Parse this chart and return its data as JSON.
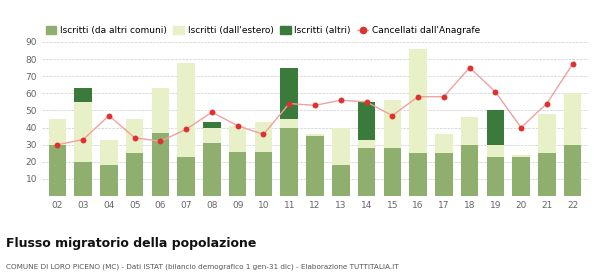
{
  "years": [
    "02",
    "03",
    "04",
    "05",
    "06",
    "07",
    "08",
    "09",
    "10",
    "11",
    "12",
    "13",
    "14",
    "15",
    "16",
    "17",
    "18",
    "19",
    "20",
    "21",
    "22"
  ],
  "iscritti_altri_comuni": [
    30,
    20,
    18,
    25,
    37,
    23,
    31,
    26,
    26,
    40,
    35,
    18,
    28,
    28,
    25,
    25,
    30,
    23,
    23,
    25,
    30
  ],
  "iscritti_estero": [
    15,
    35,
    15,
    20,
    26,
    55,
    9,
    15,
    17,
    5,
    1,
    22,
    5,
    28,
    61,
    11,
    16,
    7,
    1,
    23,
    30
  ],
  "iscritti_altri": [
    0,
    8,
    0,
    0,
    0,
    0,
    3,
    0,
    0,
    30,
    0,
    0,
    22,
    0,
    0,
    0,
    0,
    20,
    0,
    0,
    0
  ],
  "cancellati": [
    30,
    33,
    47,
    34,
    32,
    39,
    49,
    41,
    36,
    54,
    53,
    56,
    55,
    47,
    58,
    58,
    75,
    61,
    40,
    54,
    77
  ],
  "color_altri_comuni": "#8faf6e",
  "color_estero": "#e8f0c8",
  "color_altri": "#3a7a3a",
  "color_cancellati": "#e03030",
  "color_cancellati_line": "#f0a0a0",
  "ylim": [
    0,
    90
  ],
  "yticks": [
    0,
    10,
    20,
    30,
    40,
    50,
    60,
    70,
    80,
    90
  ],
  "title": "Flusso migratorio della popolazione",
  "subtitle": "COMUNE DI LORO PICENO (MC) - Dati ISTAT (bilancio demografico 1 gen-31 dic) - Elaborazione TUTTITALIA.IT",
  "legend_labels": [
    "Iscritti (da altri comuni)",
    "Iscritti (dall'estero)",
    "Iscritti (altri)",
    "Cancellati dall'Anagrafe"
  ],
  "background_color": "#ffffff",
  "grid_color": "#cccccc"
}
